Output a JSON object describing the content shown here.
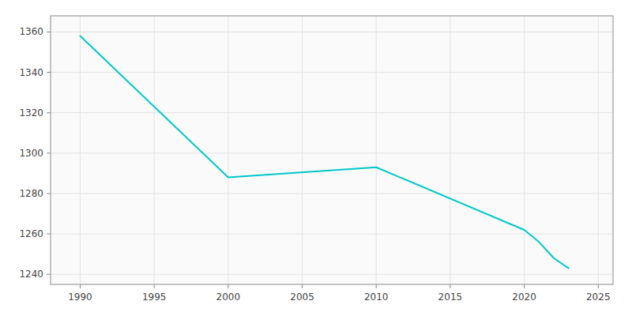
{
  "chart_data": {
    "type": "line",
    "x": [
      1990,
      2000,
      2010,
      2020,
      2021,
      2022,
      2023
    ],
    "values": [
      1358,
      1288,
      1293,
      1262,
      1256,
      1248,
      1243
    ],
    "color": "#00c8c8",
    "xlim": [
      1988,
      2026
    ],
    "ylim": [
      1235,
      1368
    ],
    "xticks": [
      1990,
      1995,
      2000,
      2005,
      2010,
      2015,
      2020,
      2025
    ],
    "yticks": [
      1240,
      1260,
      1280,
      1300,
      1320,
      1340,
      1360
    ],
    "grid": true
  }
}
